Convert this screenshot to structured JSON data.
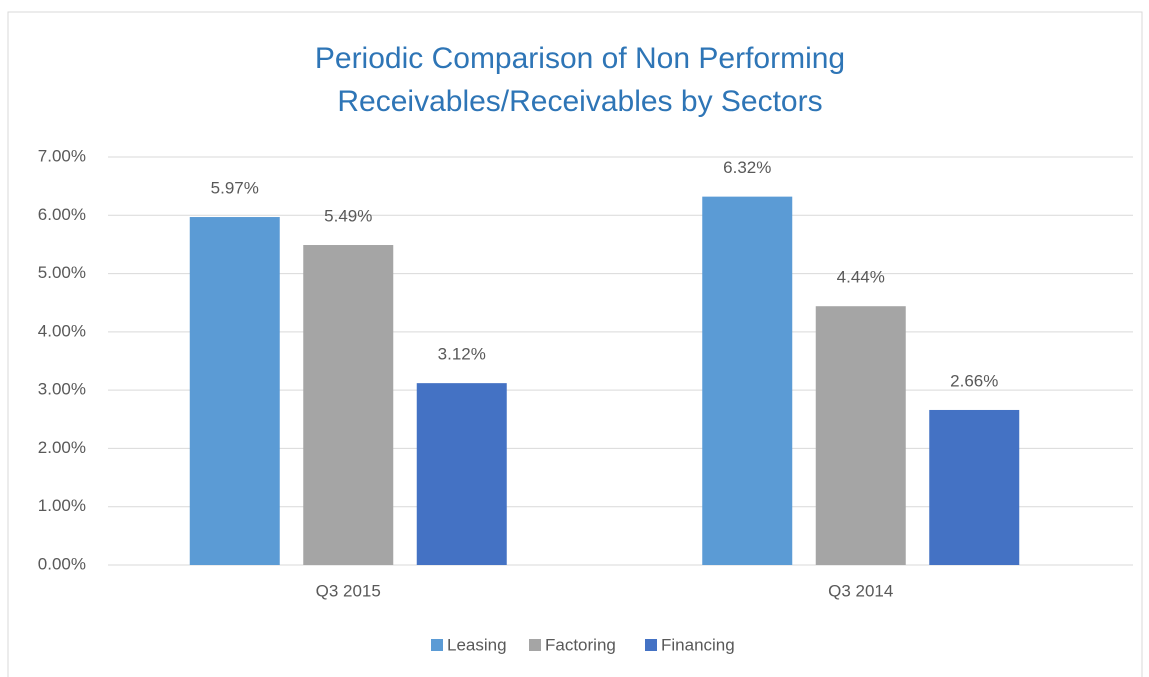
{
  "chart_data": {
    "type": "bar",
    "title": [
      "Periodic Comparison of Non Performing",
      "Receivables/Receivables by Sectors"
    ],
    "categories": [
      "Q3 2015",
      "Q3 2014"
    ],
    "series": [
      {
        "name": "Leasing",
        "color": "#5b9bd5",
        "values": [
          5.97,
          6.32
        ],
        "value_labels": [
          "5.97%",
          "6.32%"
        ]
      },
      {
        "name": "Factoring",
        "color": "#a5a5a5",
        "values": [
          5.49,
          4.44
        ],
        "value_labels": [
          "5.49%",
          "4.44%"
        ]
      },
      {
        "name": "Financing",
        "color": "#4472c4",
        "values": [
          3.12,
          2.66
        ],
        "value_labels": [
          "3.12%",
          "2.66%"
        ]
      }
    ],
    "ylim": [
      0,
      7
    ],
    "yticks": [
      {
        "value": 0,
        "label": "0.00%"
      },
      {
        "value": 1,
        "label": "1.00%"
      },
      {
        "value": 2,
        "label": "2.00%"
      },
      {
        "value": 3,
        "label": "3.00%"
      },
      {
        "value": 4,
        "label": "4.00%"
      },
      {
        "value": 5,
        "label": "5.00%"
      },
      {
        "value": 6,
        "label": "6.00%"
      },
      {
        "value": 7,
        "label": "7.00%"
      }
    ],
    "grid": true,
    "legend": "bottom"
  }
}
